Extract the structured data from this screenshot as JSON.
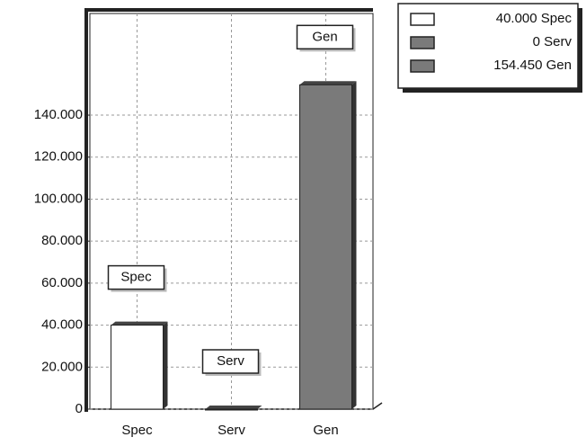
{
  "chart_data": {
    "type": "bar",
    "categories": [
      "Spec",
      "Serv",
      "Gen"
    ],
    "values": [
      40000,
      0,
      154450
    ],
    "value_labels": [
      "40.000",
      "0",
      "154.450"
    ],
    "colors": [
      "#ffffff",
      "#7a7a7a",
      "#7a7a7a"
    ],
    "ylim": [
      0,
      188400
    ],
    "yticks": [
      0,
      {
        "value": 20000,
        "label": "20.000"
      },
      {
        "value": 40000,
        "label": "40.000"
      },
      {
        "value": 60000,
        "label": "60.000"
      },
      {
        "value": 80000,
        "label": "80.000"
      },
      {
        "value": 100000,
        "label": "100.000"
      },
      {
        "value": 120000,
        "label": "120.000"
      },
      {
        "value": 140000,
        "label": "140.000"
      }
    ],
    "grid": true
  }
}
